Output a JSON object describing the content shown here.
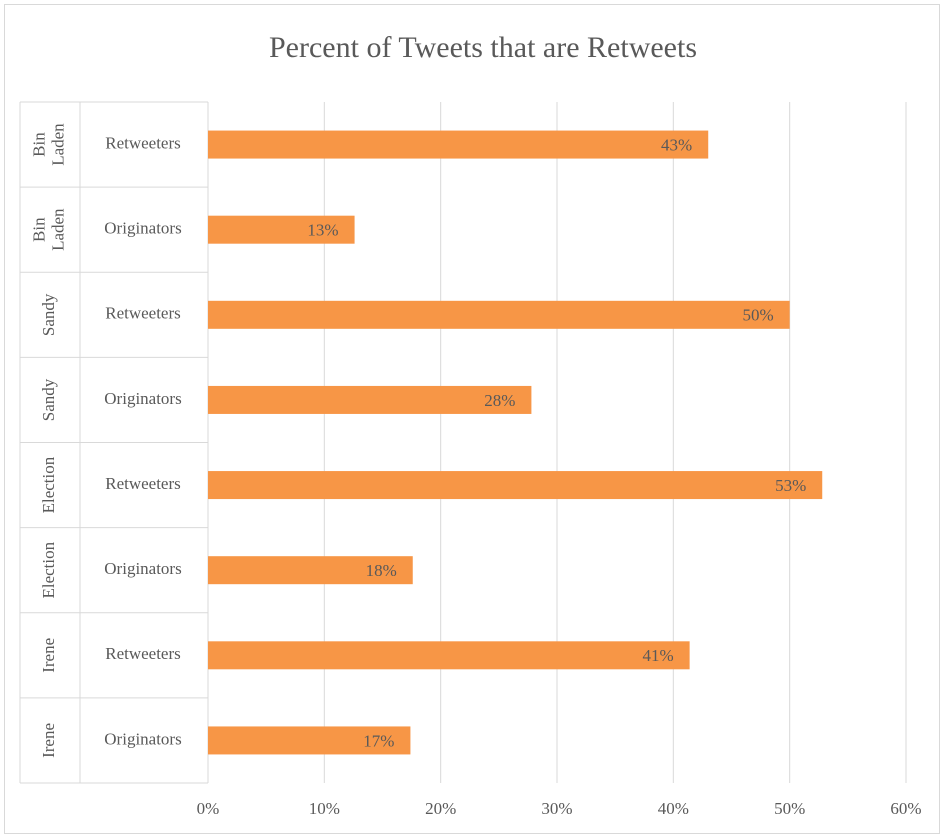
{
  "chart_data": {
    "type": "bar",
    "orientation": "horizontal",
    "title": "Percent of Tweets that are Retweets",
    "groups": [
      "Bin Laden",
      "Bin Laden",
      "Sandy",
      "Sandy",
      "Election",
      "Election",
      "Irene",
      "Irene"
    ],
    "categories": [
      "Retweeters",
      "Originators",
      "Retweeters",
      "Originators",
      "Retweeters",
      "Originators",
      "Retweeters",
      "Originators"
    ],
    "values": [
      43.0,
      12.6,
      50.0,
      27.8,
      52.8,
      17.6,
      41.4,
      17.4
    ],
    "value_labels": [
      "43%",
      "13%",
      "50%",
      "28%",
      "53%",
      "18%",
      "41%",
      "17%"
    ],
    "color": "#f79646",
    "xlim": [
      0,
      60
    ],
    "xticks": [
      {
        "value": 0,
        "label": "0%"
      },
      {
        "value": 10,
        "label": "10%"
      },
      {
        "value": 20,
        "label": "20%"
      },
      {
        "value": 30,
        "label": "30%"
      },
      {
        "value": 40,
        "label": "40%"
      },
      {
        "value": 50,
        "label": "50%"
      },
      {
        "value": 60,
        "label": "60%"
      }
    ],
    "grid": true
  }
}
